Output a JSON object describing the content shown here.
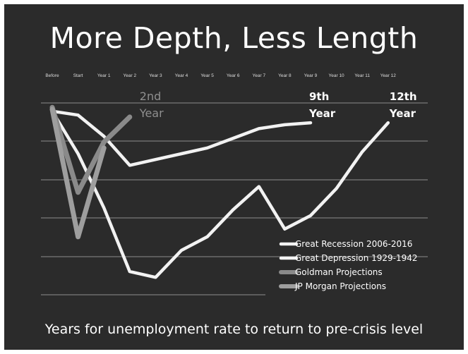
{
  "title": "More Depth, Less Length",
  "subtitle": "Years for unemployment rate to return to pre-crisis level",
  "chart_data": {
    "type": "line",
    "categories": [
      "Before",
      "Start",
      "Year 1",
      "Year 2",
      "Year 3",
      "Year 4",
      "Year 5",
      "Year 6",
      "Year 7",
      "Year 8",
      "Year 9",
      "Year 10",
      "Year 11",
      "Year 12"
    ],
    "ylim": [
      0,
      1
    ],
    "grid": true,
    "legend": "bottom-right",
    "series": [
      {
        "name": "Great Recession 2006-2016",
        "color": "#f2f2f2",
        "x": [
          0,
          1,
          2,
          3,
          4,
          5,
          6,
          7,
          8,
          9,
          10
        ],
        "y": [
          0.95,
          0.93,
          0.82,
          0.67,
          0.7,
          0.73,
          0.76,
          0.81,
          0.86,
          0.88,
          0.89
        ]
      },
      {
        "name": "Great Depression 1929-1942",
        "color": "#f2f2f2",
        "x": [
          0,
          1,
          2,
          3,
          4,
          5,
          6,
          7,
          8,
          9,
          10,
          11,
          12,
          13
        ],
        "y": [
          0.95,
          0.73,
          0.45,
          0.12,
          0.09,
          0.23,
          0.3,
          0.44,
          0.56,
          0.34,
          0.41,
          0.55,
          0.74,
          0.89
        ]
      },
      {
        "name": "Goldman Projections",
        "color": "#8a8a8a",
        "x": [
          0,
          1,
          2,
          3
        ],
        "y": [
          0.97,
          0.53,
          0.79,
          0.92
        ]
      },
      {
        "name": "JP Morgan Projections",
        "color": "#9e9e9e",
        "x": [
          0,
          1,
          2
        ],
        "y": [
          0.96,
          0.3,
          0.76
        ]
      }
    ],
    "annotations": [
      {
        "text": [
          "2nd",
          "Year"
        ],
        "x": 3,
        "color": "#8f8f8f"
      },
      {
        "text": [
          "9th",
          "Year"
        ],
        "x": 10,
        "color": "#ffffff"
      },
      {
        "text": [
          "12th",
          "Year"
        ],
        "x": 13,
        "color": "#ffffff"
      }
    ]
  }
}
